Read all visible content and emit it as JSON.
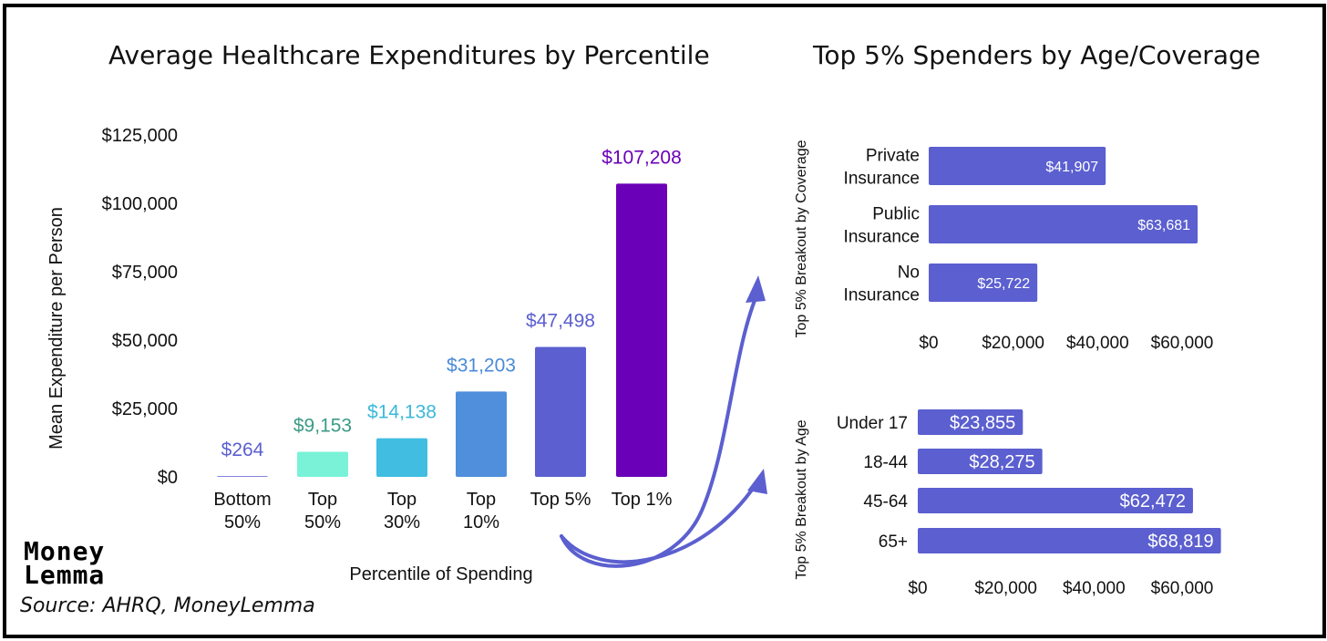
{
  "colors": {
    "bar_bottom50": "#5b5fcf",
    "bar_top50": "#79f2d8",
    "bar_top30": "#41bde1",
    "bar_top10": "#4f8fdb",
    "bar_top5": "#5b5fcf",
    "bar_top1": "#6a00b8",
    "label_bottom50": "#5b5fcf",
    "label_top50": "#3a9a86",
    "label_top30": "#3cb8d9",
    "label_top10": "#4a8ad8",
    "label_top5": "#5b5fcf",
    "label_top1": "#6a00b8",
    "hbar": "#5b5fcf",
    "arrow": "#5b5fcf"
  },
  "titles": {
    "main": "Average Healthcare Expenditures by Percentile",
    "right": "Top 5% Spenders by Age/Coverage"
  },
  "logo": {
    "line1": "Money",
    "line2": "Lemma",
    "icon": "pixel-wordmark-icon"
  },
  "source": "Source: AHRQ, MoneyLemma",
  "chart_data": [
    {
      "type": "bar",
      "title": "Average Healthcare Expenditures by Percentile",
      "xlabel": "Percentile of Spending",
      "ylabel": "Mean Expenditure per Person",
      "ylim": [
        0,
        125000
      ],
      "yticks": [
        0,
        25000,
        50000,
        75000,
        100000,
        125000
      ],
      "ytick_labels": [
        "$0",
        "$25,000",
        "$50,000",
        "$75,000",
        "$100,000",
        "$125,000"
      ],
      "grid": false,
      "categories": [
        [
          "Bottom",
          "50%"
        ],
        [
          "Top",
          "50%"
        ],
        [
          "Top",
          "30%"
        ],
        [
          "Top",
          "10%"
        ],
        [
          "Top 5%"
        ],
        [
          "Top 1%"
        ]
      ],
      "values": [
        264,
        9153,
        14138,
        31203,
        47498,
        107208
      ],
      "data_labels": [
        "$264",
        "$9,153",
        "$14,138",
        "$31,203",
        "$47,498",
        "$107,208"
      ]
    },
    {
      "type": "bar",
      "orientation": "horizontal",
      "ylabel": "Top 5% Breakout by Coverage",
      "categories": [
        [
          "Private",
          "Insurance"
        ],
        [
          "Public",
          "Insurance"
        ],
        [
          "No",
          "Insurance"
        ]
      ],
      "values": [
        41907,
        63681,
        25722
      ],
      "data_labels": [
        "$41,907",
        "$63,681",
        "$25,722"
      ],
      "xticks": [
        0,
        20000,
        40000,
        60000
      ],
      "xtick_labels": [
        "$0",
        "$20,000",
        "$40,000",
        "$60,000"
      ],
      "grid": false
    },
    {
      "type": "bar",
      "orientation": "horizontal",
      "ylabel": "Top 5% Breakout by Age",
      "categories": [
        [
          "Under 17"
        ],
        [
          "18-44"
        ],
        [
          "45-64"
        ],
        [
          "65+"
        ]
      ],
      "values": [
        23855,
        28275,
        62472,
        68819
      ],
      "data_labels": [
        "$23,855",
        "$28,275",
        "$62,472",
        "$68,819"
      ],
      "xticks": [
        0,
        20000,
        40000,
        60000
      ],
      "xtick_labels": [
        "$0",
        "$20,000",
        "$40,000",
        "$60,000"
      ],
      "grid": false
    }
  ]
}
